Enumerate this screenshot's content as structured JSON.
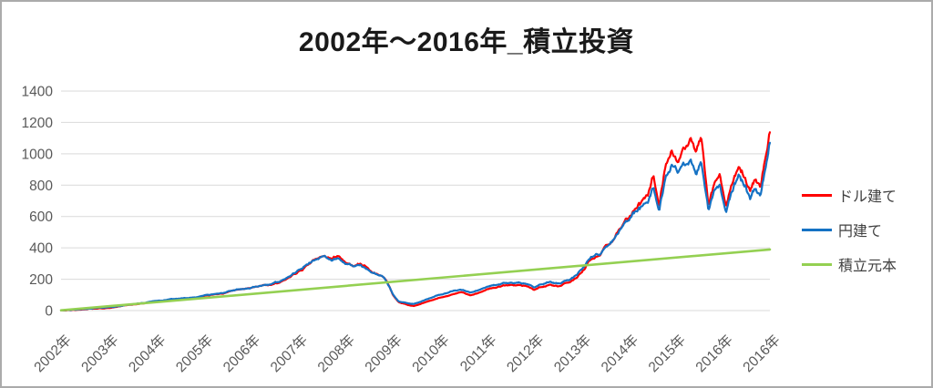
{
  "chart_data": {
    "type": "line",
    "title": "2002年～2016年_積立投資",
    "x_tick_labels": [
      "2002年",
      "2003年",
      "2004年",
      "2005年",
      "2006年",
      "2007年",
      "2008年",
      "2009年",
      "2010年",
      "2011年",
      "2012年",
      "2013年",
      "2014年",
      "2015年",
      "2016年",
      "2016年"
    ],
    "y_ticks": [
      0,
      200,
      400,
      600,
      800,
      1000,
      1200,
      1400
    ],
    "ylim": [
      0,
      1400
    ],
    "grid": "horizontal",
    "grid_color": "#d9d9d9",
    "axis_text_color": "#595959",
    "legend_position": "right",
    "legend_text_color": "#404040",
    "x_axis_note": "category axis, one label per year, data runs 2002 to mid-2016; x in points below is fraction 0-1 of the axis",
    "series": [
      {
        "key": "dollar",
        "name": "ドル建て",
        "color": "#ff0000",
        "jitter": true,
        "points": [
          [
            0,
            2
          ],
          [
            0.02,
            5
          ],
          [
            0.045,
            12
          ],
          [
            0.07,
            20
          ],
          [
            0.09,
            32
          ],
          [
            0.115,
            45
          ],
          [
            0.14,
            60
          ],
          [
            0.16,
            68
          ],
          [
            0.19,
            82
          ],
          [
            0.21,
            96
          ],
          [
            0.23,
            110
          ],
          [
            0.26,
            138
          ],
          [
            0.28,
            152
          ],
          [
            0.3,
            172
          ],
          [
            0.32,
            205
          ],
          [
            0.34,
            258
          ],
          [
            0.355,
            322
          ],
          [
            0.37,
            352
          ],
          [
            0.382,
            325
          ],
          [
            0.392,
            348
          ],
          [
            0.402,
            302
          ],
          [
            0.412,
            282
          ],
          [
            0.422,
            300
          ],
          [
            0.435,
            258
          ],
          [
            0.45,
            232
          ],
          [
            0.46,
            185
          ],
          [
            0.468,
            100
          ],
          [
            0.476,
            55
          ],
          [
            0.487,
            38
          ],
          [
            0.497,
            28
          ],
          [
            0.507,
            42
          ],
          [
            0.52,
            62
          ],
          [
            0.535,
            82
          ],
          [
            0.55,
            102
          ],
          [
            0.565,
            116
          ],
          [
            0.577,
            100
          ],
          [
            0.59,
            116
          ],
          [
            0.61,
            142
          ],
          [
            0.625,
            156
          ],
          [
            0.64,
            162
          ],
          [
            0.655,
            158
          ],
          [
            0.667,
            128
          ],
          [
            0.677,
            148
          ],
          [
            0.69,
            168
          ],
          [
            0.7,
            158
          ],
          [
            0.715,
            178
          ],
          [
            0.728,
            205
          ],
          [
            0.736,
            250
          ],
          [
            0.744,
            305
          ],
          [
            0.752,
            330
          ],
          [
            0.76,
            350
          ],
          [
            0.768,
            395
          ],
          [
            0.778,
            450
          ],
          [
            0.788,
            545
          ],
          [
            0.798,
            600
          ],
          [
            0.808,
            645
          ],
          [
            0.818,
            690
          ],
          [
            0.828,
            740
          ],
          [
            0.836,
            870
          ],
          [
            0.844,
            660
          ],
          [
            0.852,
            905
          ],
          [
            0.861,
            1040
          ],
          [
            0.87,
            985
          ],
          [
            0.878,
            1030
          ],
          [
            0.887,
            1095
          ],
          [
            0.895,
            1010
          ],
          [
            0.903,
            1105
          ],
          [
            0.913,
            655
          ],
          [
            0.921,
            790
          ],
          [
            0.929,
            825
          ],
          [
            0.938,
            625
          ],
          [
            0.947,
            780
          ],
          [
            0.956,
            900
          ],
          [
            0.965,
            855
          ],
          [
            0.972,
            790
          ],
          [
            0.98,
            860
          ],
          [
            0.987,
            800
          ],
          [
            1,
            1150
          ]
        ]
      },
      {
        "key": "yen",
        "name": "円建て",
        "color": "#1572c4",
        "jitter": true,
        "points": [
          [
            0,
            2
          ],
          [
            0.02,
            6
          ],
          [
            0.045,
            14
          ],
          [
            0.07,
            24
          ],
          [
            0.09,
            35
          ],
          [
            0.115,
            48
          ],
          [
            0.14,
            63
          ],
          [
            0.16,
            72
          ],
          [
            0.19,
            86
          ],
          [
            0.21,
            100
          ],
          [
            0.23,
            114
          ],
          [
            0.26,
            142
          ],
          [
            0.28,
            156
          ],
          [
            0.3,
            176
          ],
          [
            0.32,
            208
          ],
          [
            0.34,
            262
          ],
          [
            0.355,
            320
          ],
          [
            0.37,
            345
          ],
          [
            0.382,
            320
          ],
          [
            0.392,
            340
          ],
          [
            0.402,
            298
          ],
          [
            0.412,
            278
          ],
          [
            0.422,
            296
          ],
          [
            0.435,
            252
          ],
          [
            0.45,
            230
          ],
          [
            0.46,
            182
          ],
          [
            0.468,
            105
          ],
          [
            0.476,
            62
          ],
          [
            0.487,
            48
          ],
          [
            0.497,
            40
          ],
          [
            0.507,
            55
          ],
          [
            0.52,
            78
          ],
          [
            0.535,
            100
          ],
          [
            0.55,
            120
          ],
          [
            0.565,
            134
          ],
          [
            0.577,
            118
          ],
          [
            0.59,
            134
          ],
          [
            0.61,
            160
          ],
          [
            0.625,
            174
          ],
          [
            0.64,
            180
          ],
          [
            0.655,
            175
          ],
          [
            0.667,
            146
          ],
          [
            0.677,
            165
          ],
          [
            0.69,
            186
          ],
          [
            0.7,
            175
          ],
          [
            0.715,
            195
          ],
          [
            0.728,
            222
          ],
          [
            0.736,
            268
          ],
          [
            0.744,
            318
          ],
          [
            0.752,
            342
          ],
          [
            0.76,
            360
          ],
          [
            0.768,
            398
          ],
          [
            0.778,
            448
          ],
          [
            0.788,
            535
          ],
          [
            0.798,
            585
          ],
          [
            0.808,
            625
          ],
          [
            0.818,
            660
          ],
          [
            0.828,
            700
          ],
          [
            0.836,
            800
          ],
          [
            0.844,
            640
          ],
          [
            0.852,
            830
          ],
          [
            0.861,
            930
          ],
          [
            0.87,
            890
          ],
          [
            0.878,
            920
          ],
          [
            0.887,
            960
          ],
          [
            0.895,
            900
          ],
          [
            0.903,
            965
          ],
          [
            0.913,
            620
          ],
          [
            0.921,
            740
          ],
          [
            0.929,
            770
          ],
          [
            0.938,
            580
          ],
          [
            0.947,
            730
          ],
          [
            0.956,
            850
          ],
          [
            0.965,
            800
          ],
          [
            0.972,
            740
          ],
          [
            0.98,
            800
          ],
          [
            0.987,
            750
          ],
          [
            1,
            1090
          ]
        ]
      },
      {
        "key": "principal",
        "name": "積立元本",
        "color": "#94d052",
        "jitter": false,
        "points": [
          [
            0,
            2
          ],
          [
            1,
            390
          ]
        ]
      }
    ]
  }
}
